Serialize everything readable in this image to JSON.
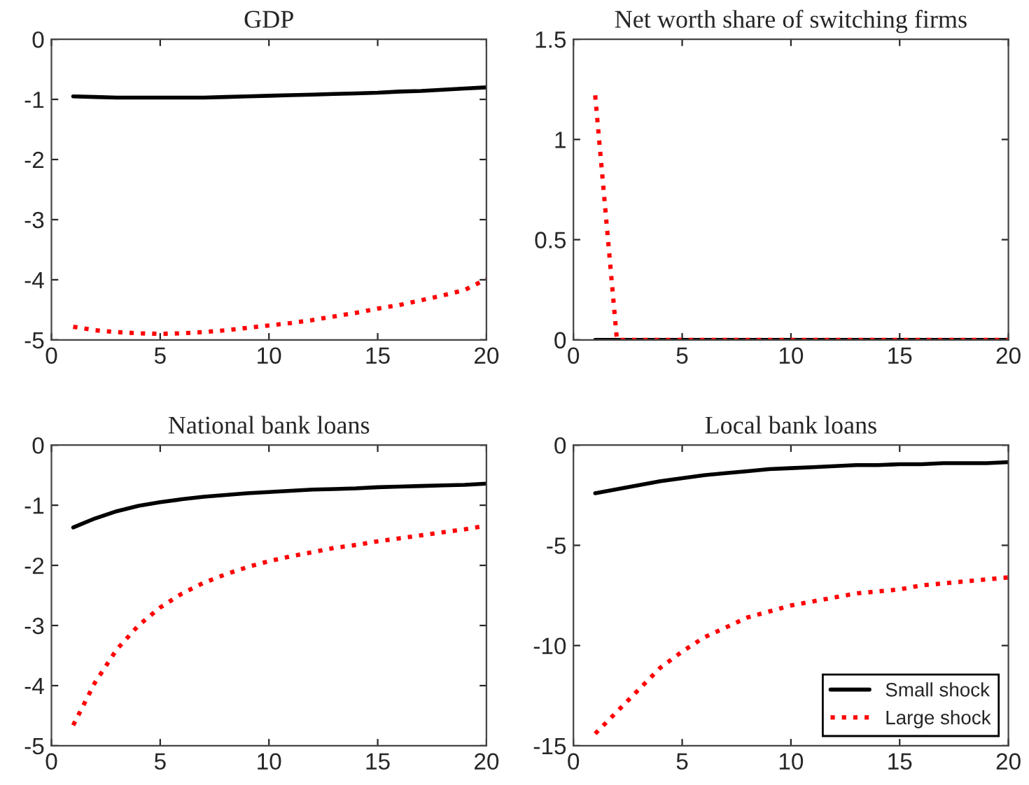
{
  "chart_data": [
    {
      "type": "line",
      "title": "GDP",
      "x": [
        1,
        2,
        3,
        4,
        5,
        6,
        7,
        8,
        9,
        10,
        11,
        12,
        13,
        14,
        15,
        16,
        17,
        18,
        19,
        20
      ],
      "xlim": [
        0,
        20
      ],
      "xticks": [
        0,
        5,
        10,
        15,
        20
      ],
      "ylim": [
        -5,
        0
      ],
      "yticks": [
        -5,
        -4,
        -3,
        -2,
        -1,
        0
      ],
      "grid": false,
      "legend": false,
      "series": [
        {
          "color": "#000000",
          "line_style": "solid",
          "values": [
            -0.95,
            -0.96,
            -0.97,
            -0.97,
            -0.97,
            -0.97,
            -0.97,
            -0.96,
            -0.95,
            -0.94,
            -0.93,
            -0.92,
            -0.91,
            -0.9,
            -0.89,
            -0.87,
            -0.86,
            -0.84,
            -0.82,
            -0.8
          ]
        },
        {
          "color": "#ff0000",
          "line_style": "dotted",
          "values": [
            -4.78,
            -4.84,
            -4.87,
            -4.89,
            -4.9,
            -4.89,
            -4.87,
            -4.84,
            -4.8,
            -4.76,
            -4.72,
            -4.67,
            -4.61,
            -4.55,
            -4.48,
            -4.42,
            -4.34,
            -4.26,
            -4.17,
            -3.99
          ]
        }
      ]
    },
    {
      "type": "line",
      "title": "Net worth share of switching firms",
      "x": [
        1,
        2,
        3,
        4,
        5,
        6,
        7,
        8,
        9,
        10,
        11,
        12,
        13,
        14,
        15,
        16,
        17,
        18,
        19,
        20
      ],
      "xlim": [
        0,
        20
      ],
      "xticks": [
        0,
        5,
        10,
        15,
        20
      ],
      "ylim": [
        0,
        1.5
      ],
      "yticks": [
        0,
        0.5,
        1,
        1.5
      ],
      "grid": false,
      "legend": false,
      "series": [
        {
          "color": "#000000",
          "line_style": "solid",
          "values": [
            0,
            0,
            0,
            0,
            0,
            0,
            0,
            0,
            0,
            0,
            0,
            0,
            0,
            0,
            0,
            0,
            0,
            0,
            0,
            0
          ]
        },
        {
          "color": "#ff0000",
          "line_style": "dotted",
          "values": [
            1.22,
            0,
            0,
            0,
            0,
            0,
            0,
            0,
            0,
            0,
            0,
            0,
            0,
            0,
            0,
            0,
            0,
            0,
            0,
            0
          ]
        }
      ]
    },
    {
      "type": "line",
      "title": "National bank loans",
      "x": [
        1,
        2,
        3,
        4,
        5,
        6,
        7,
        8,
        9,
        10,
        11,
        12,
        13,
        14,
        15,
        16,
        17,
        18,
        19,
        20
      ],
      "xlim": [
        0,
        20
      ],
      "xticks": [
        0,
        5,
        10,
        15,
        20
      ],
      "ylim": [
        -5,
        0
      ],
      "yticks": [
        -5,
        -4,
        -3,
        -2,
        -1,
        0
      ],
      "grid": false,
      "legend": false,
      "series": [
        {
          "color": "#000000",
          "line_style": "solid",
          "values": [
            -1.37,
            -1.22,
            -1.1,
            -1.01,
            -0.95,
            -0.9,
            -0.86,
            -0.83,
            -0.8,
            -0.78,
            -0.76,
            -0.74,
            -0.73,
            -0.72,
            -0.7,
            -0.69,
            -0.68,
            -0.67,
            -0.66,
            -0.64
          ]
        },
        {
          "color": "#ff0000",
          "line_style": "dotted",
          "values": [
            -4.66,
            -3.95,
            -3.4,
            -3.0,
            -2.7,
            -2.47,
            -2.29,
            -2.15,
            -2.03,
            -1.93,
            -1.85,
            -1.78,
            -1.71,
            -1.66,
            -1.6,
            -1.55,
            -1.5,
            -1.45,
            -1.4,
            -1.34
          ]
        }
      ]
    },
    {
      "type": "line",
      "title": "Local bank loans",
      "x": [
        1,
        2,
        3,
        4,
        5,
        6,
        7,
        8,
        9,
        10,
        11,
        12,
        13,
        14,
        15,
        16,
        17,
        18,
        19,
        20
      ],
      "xlim": [
        0,
        20
      ],
      "xticks": [
        0,
        5,
        10,
        15,
        20
      ],
      "ylim": [
        -15,
        0
      ],
      "yticks": [
        -15,
        -10,
        -5,
        0
      ],
      "grid": false,
      "legend": "bottom right",
      "series": [
        {
          "name": "Small shock",
          "color": "#000000",
          "line_style": "solid",
          "values": [
            -2.4,
            -2.2,
            -2.0,
            -1.8,
            -1.65,
            -1.5,
            -1.4,
            -1.3,
            -1.2,
            -1.15,
            -1.1,
            -1.05,
            -1.0,
            -1.0,
            -0.95,
            -0.95,
            -0.9,
            -0.9,
            -0.9,
            -0.85
          ]
        },
        {
          "name": "Large shock",
          "color": "#ff0000",
          "line_style": "dotted",
          "values": [
            -14.4,
            -13.3,
            -12.2,
            -11.1,
            -10.3,
            -9.6,
            -9.1,
            -8.6,
            -8.3,
            -8.0,
            -7.8,
            -7.6,
            -7.4,
            -7.3,
            -7.2,
            -7.0,
            -6.9,
            -6.8,
            -6.7,
            -6.6
          ]
        }
      ]
    }
  ]
}
